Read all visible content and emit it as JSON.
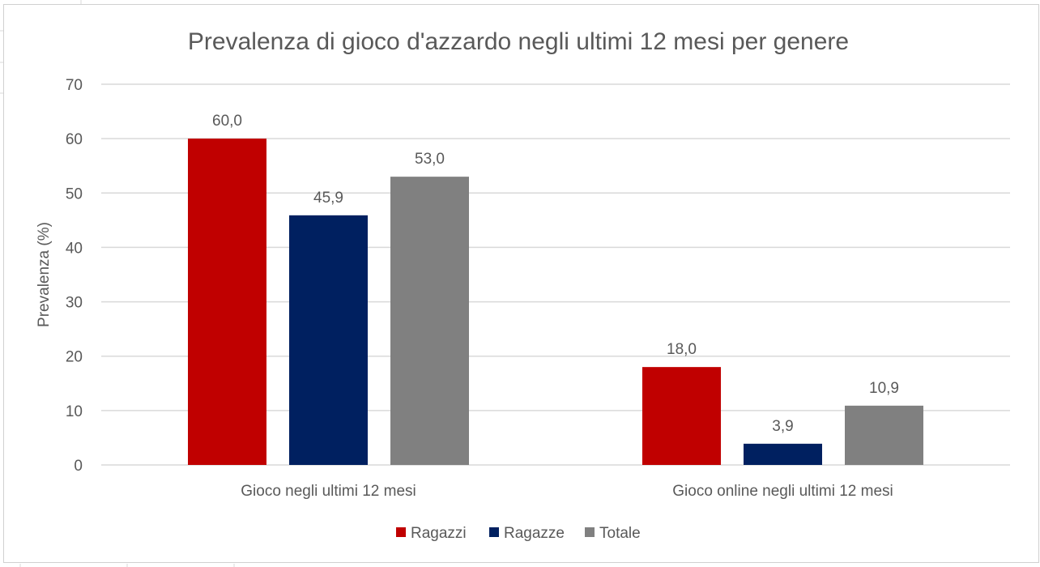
{
  "chart_data": {
    "type": "bar",
    "title": "Prevalenza di gioco d'azzardo negli ultimi 12 mesi per genere",
    "xlabel": "",
    "ylabel": "Prevalenza (%)",
    "ylim": [
      0,
      70
    ],
    "yticks": [
      0,
      10,
      20,
      30,
      40,
      50,
      60,
      70
    ],
    "grid": true,
    "legend_position": "bottom",
    "categories": [
      "Gioco negli ultimi 12 mesi",
      "Gioco online negli ultimi 12 mesi"
    ],
    "series": [
      {
        "name": "Ragazzi",
        "color": "#C00000",
        "values": [
          60.0,
          18.0
        ],
        "labels": [
          "60,0",
          "18,0"
        ]
      },
      {
        "name": "Ragazze",
        "color": "#002060",
        "values": [
          45.9,
          3.9
        ],
        "labels": [
          "45,9",
          "3,9"
        ]
      },
      {
        "name": "Totale",
        "color": "#808080",
        "values": [
          53.0,
          10.9
        ],
        "labels": [
          "53,0",
          "10,9"
        ]
      }
    ]
  }
}
